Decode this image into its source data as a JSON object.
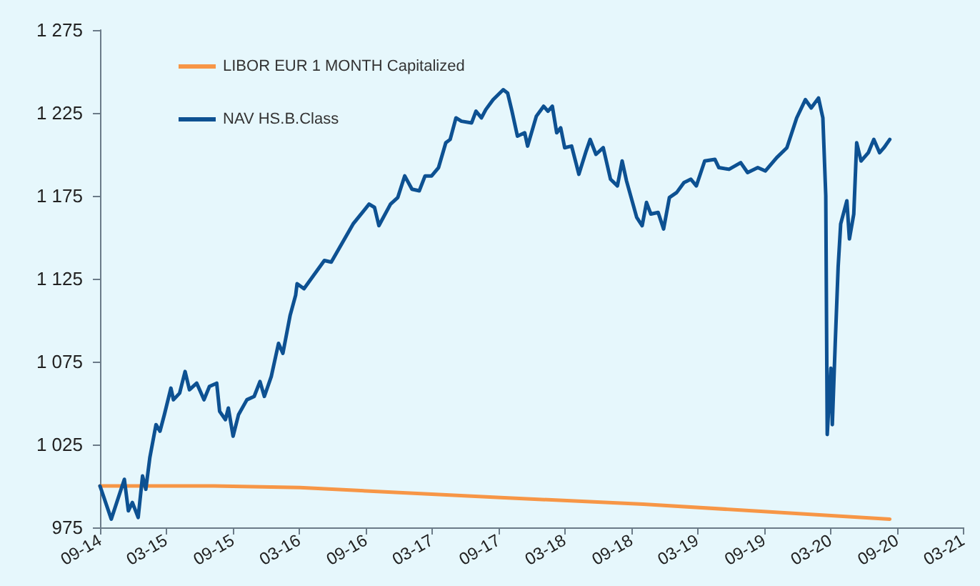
{
  "chart_data": {
    "type": "line",
    "legend": "top left",
    "grid": false,
    "marker": "none",
    "line_style": "solid",
    "xlim": [
      "2014-09-01",
      "2021-03-01"
    ],
    "xticks": [
      {
        "value": "2014-09",
        "label": "09-14"
      },
      {
        "value": "2015-03",
        "label": "03-15"
      },
      {
        "value": "2015-09",
        "label": "09-15"
      },
      {
        "value": "2016-03",
        "label": "03-16"
      },
      {
        "value": "2016-09",
        "label": "09-16"
      },
      {
        "value": "2017-03",
        "label": "03-17"
      },
      {
        "value": "2017-09",
        "label": "09-17"
      },
      {
        "value": "2018-03",
        "label": "03-18"
      },
      {
        "value": "2018-09",
        "label": "09-18"
      },
      {
        "value": "2019-03",
        "label": "03-19"
      },
      {
        "value": "2019-09",
        "label": "09-19"
      },
      {
        "value": "2020-03",
        "label": "03-20"
      },
      {
        "value": "2020-09",
        "label": "09-20"
      },
      {
        "value": "2021-03",
        "label": "03-21"
      }
    ],
    "ylim": [
      975,
      1275
    ],
    "yticks": [
      975,
      {
        "value": 1025,
        "label": "1 025"
      },
      {
        "value": 1075,
        "label": "1 075"
      },
      {
        "value": 1125,
        "label": "1 125"
      },
      {
        "value": 1175,
        "label": "1 175"
      },
      {
        "value": 1225,
        "label": "1 225"
      },
      {
        "value": 1275,
        "label": "1 275"
      }
    ],
    "series": [
      {
        "name": "LIBOR EUR 1 MONTH Capitalized",
        "color": "#f79646",
        "x": [
          "2014-09-01",
          "2015-07-11",
          "2016-03-04",
          "2017-09-07",
          "2018-10-04",
          "2020-08-12"
        ],
        "values": [
          1000,
          1000,
          999,
          993,
          989,
          980
        ]
      },
      {
        "name": "NAV HS.B.Class",
        "color": "#0d5192",
        "x": [
          "2014-09-01",
          "2014-10-02",
          "2014-11-07",
          "2014-11-18",
          "2014-11-29",
          "2014-12-15",
          "2014-12-27",
          "2015-01-05",
          "2015-01-16",
          "2015-02-02",
          "2015-02-13",
          "2015-02-25",
          "2015-03-15",
          "2015-03-22",
          "2015-04-08",
          "2015-04-23",
          "2015-05-05",
          "2015-05-25",
          "2015-06-14",
          "2015-06-29",
          "2015-07-19",
          "2015-07-27",
          "2015-08-12",
          "2015-08-20",
          "2015-09-02",
          "2015-09-17",
          "2015-10-10",
          "2015-10-30",
          "2015-11-15",
          "2015-11-27",
          "2015-12-16",
          "2016-01-05",
          "2016-01-17",
          "2016-02-06",
          "2016-02-21",
          "2016-02-25",
          "2016-03-15",
          "2016-05-10",
          "2016-05-29",
          "2016-07-28",
          "2016-09-10",
          "2016-09-25",
          "2016-10-07",
          "2016-11-08",
          "2016-11-28",
          "2016-12-17",
          "2017-01-06",
          "2017-01-26",
          "2017-02-11",
          "2017-03-01",
          "2017-03-20",
          "2017-04-09",
          "2017-04-21",
          "2017-05-07",
          "2017-05-22",
          "2017-06-19",
          "2017-07-01",
          "2017-07-16",
          "2017-07-28",
          "2017-08-17",
          "2017-09-14",
          "2017-09-26",
          "2017-10-08",
          "2017-10-23",
          "2017-11-12",
          "2017-11-20",
          "2017-12-14",
          "2018-01-03",
          "2018-01-15",
          "2018-01-27",
          "2018-02-08",
          "2018-02-19",
          "2018-03-02",
          "2018-03-21",
          "2018-04-10",
          "2018-04-30",
          "2018-05-11",
          "2018-05-27",
          "2018-06-16",
          "2018-07-06",
          "2018-07-25",
          "2018-08-07",
          "2018-08-19",
          "2018-09-16",
          "2018-10-01",
          "2018-10-13",
          "2018-10-25",
          "2018-11-14",
          "2018-11-29",
          "2018-12-15",
          "2019-01-04",
          "2019-01-24",
          "2019-02-12",
          "2019-02-27",
          "2019-03-22",
          "2019-04-19",
          "2019-04-30",
          "2019-05-28",
          "2019-06-29",
          "2019-07-18",
          "2019-08-15",
          "2019-09-05",
          "2019-10-06",
          "2019-11-03",
          "2019-11-30",
          "2019-12-24",
          "2020-01-09",
          "2020-01-29",
          "2020-02-10",
          "2020-02-18",
          "2020-02-22",
          "2020-03-03",
          "2020-03-07",
          "2020-03-15",
          "2020-03-23",
          "2020-03-30",
          "2020-04-16",
          "2020-04-23",
          "2020-05-05",
          "2020-05-13",
          "2020-05-25",
          "2020-06-14",
          "2020-06-29",
          "2020-07-15",
          "2020-07-27",
          "2020-08-12"
        ],
        "values": [
          1000,
          980,
          1004,
          985,
          990,
          981,
          1006,
          998,
          1017,
          1037,
          1033,
          1043,
          1059,
          1052,
          1056,
          1069,
          1058,
          1062,
          1052,
          1060,
          1062,
          1045,
          1040,
          1047,
          1030,
          1043,
          1052,
          1054,
          1063,
          1054,
          1066,
          1086,
          1080,
          1103,
          1115,
          1122,
          1119,
          1136,
          1135,
          1158,
          1170,
          1168,
          1157,
          1170,
          1174,
          1187,
          1179,
          1178,
          1187,
          1187,
          1192,
          1207,
          1209,
          1222,
          1220,
          1219,
          1226,
          1222,
          1227,
          1233,
          1239,
          1237,
          1226,
          1211,
          1213,
          1205,
          1223,
          1229,
          1226,
          1229,
          1213,
          1216,
          1204,
          1205,
          1188,
          1202,
          1209,
          1200,
          1204,
          1185,
          1181,
          1196,
          1184,
          1162,
          1157,
          1171,
          1164,
          1165,
          1155,
          1174,
          1177,
          1183,
          1185,
          1181,
          1196,
          1197,
          1192,
          1191,
          1195,
          1189,
          1192,
          1190,
          1198,
          1204,
          1222,
          1233,
          1228,
          1234,
          1222,
          1175,
          1031,
          1071,
          1037,
          1086,
          1132,
          1158,
          1172,
          1149,
          1164,
          1207,
          1196,
          1201,
          1209,
          1201,
          1204,
          1209
        ]
      }
    ]
  }
}
